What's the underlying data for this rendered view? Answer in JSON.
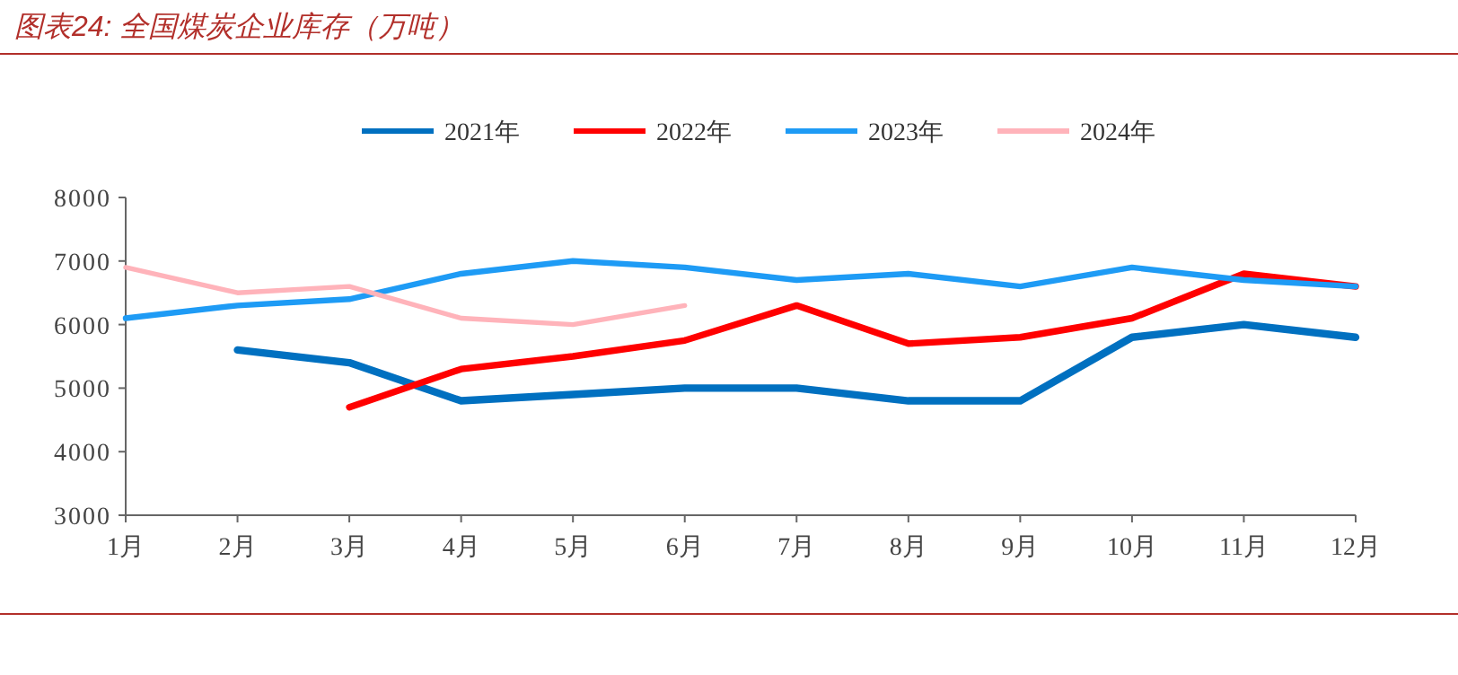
{
  "chart_data": {
    "type": "line",
    "title": "图表24:  全国煤炭企业库存（万吨）",
    "categories": [
      "1月",
      "2月",
      "3月",
      "4月",
      "5月",
      "6月",
      "7月",
      "8月",
      "9月",
      "10月",
      "11月",
      "12月"
    ],
    "series": [
      {
        "name": "2021年",
        "color": "#0070c0",
        "values": [
          null,
          5600,
          5400,
          4800,
          4900,
          5000,
          5000,
          4800,
          4800,
          5800,
          6000,
          5800
        ]
      },
      {
        "name": "2022年",
        "color": "#ff0000",
        "values": [
          null,
          null,
          4700,
          5300,
          5500,
          5750,
          6300,
          5700,
          5800,
          6100,
          6800,
          6600
        ]
      },
      {
        "name": "2023年",
        "color": "#1e9bf5",
        "values": [
          6100,
          6300,
          6400,
          6800,
          7000,
          6900,
          6700,
          6800,
          6600,
          6900,
          6700,
          6600
        ]
      },
      {
        "name": "2024年",
        "color": "#ffb3ba",
        "values": [
          6900,
          6500,
          6600,
          6100,
          6000,
          6300,
          null,
          null,
          null,
          null,
          null,
          null
        ]
      }
    ],
    "ylim": [
      3000,
      8000
    ],
    "yticks": [
      3000,
      4000,
      5000,
      6000,
      7000,
      8000
    ],
    "grid": false,
    "legend": "top",
    "marker": "none",
    "line_style": "solid"
  }
}
